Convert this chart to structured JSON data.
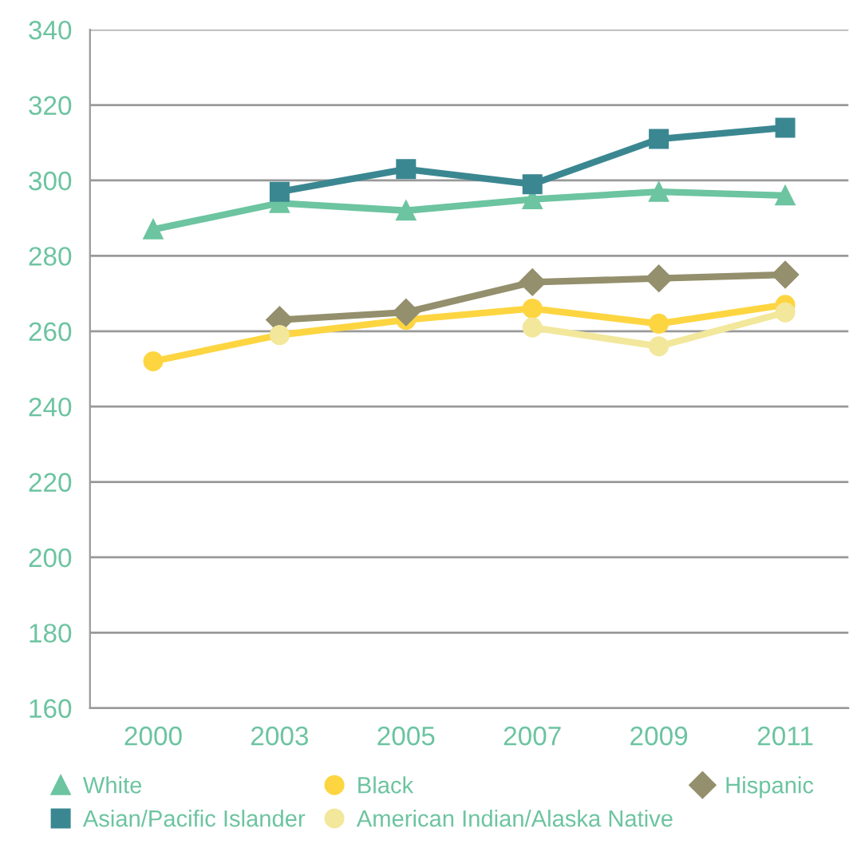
{
  "chart_data": {
    "type": "line",
    "categories": [
      "2000",
      "2003",
      "2005",
      "2007",
      "2009",
      "2011"
    ],
    "series": [
      {
        "name": "White",
        "color": "#6cc4a0",
        "marker": "triangle",
        "values": [
          287,
          294,
          292,
          295,
          297,
          296
        ]
      },
      {
        "name": "Black",
        "color": "#fdd541",
        "marker": "circle",
        "values": [
          252,
          259,
          263,
          266,
          262,
          267
        ]
      },
      {
        "name": "Hispanic",
        "color": "#948f6c",
        "marker": "diamond",
        "values": [
          null,
          263,
          265,
          273,
          274,
          275
        ]
      },
      {
        "name": "Asian/Pacific Islander",
        "color": "#3a8791",
        "marker": "square",
        "values": [
          null,
          297,
          303,
          299,
          311,
          314
        ]
      },
      {
        "name": "American Indian/Alaska Native",
        "color": "#f2e79b",
        "marker": "circle",
        "values": [
          null,
          259,
          null,
          261,
          256,
          265
        ]
      }
    ],
    "ylim": [
      160,
      340
    ],
    "yticks": [
      160,
      180,
      200,
      220,
      240,
      260,
      280,
      300,
      320,
      340
    ],
    "grid": "y",
    "legend": "bottom",
    "line_style": "solid"
  }
}
